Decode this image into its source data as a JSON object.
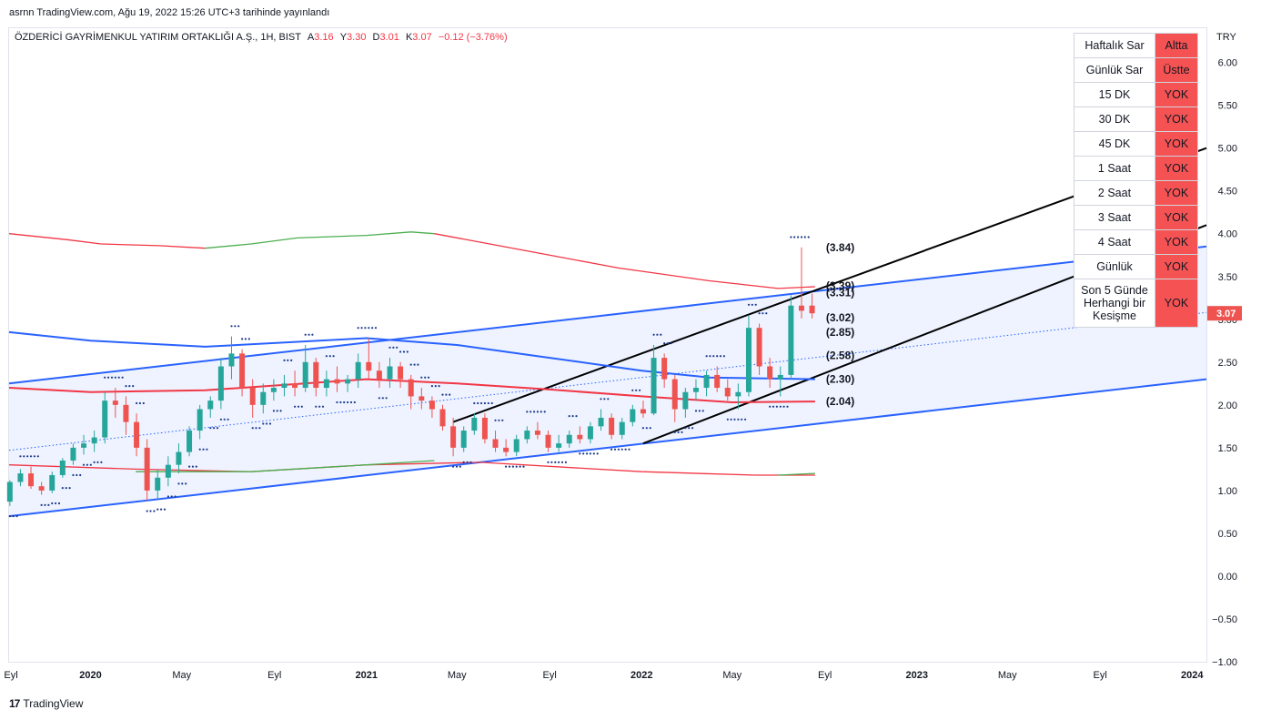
{
  "header": {
    "published_note": "asrnn TradingView.com, Ağu 19, 2022 15:26 UTC+3 tarihinde yayınlandı"
  },
  "legend": {
    "symbol": "ÖZDERİCİ GAYRİMENKUL YATIRIM ORTAKLIĞI A.Ş., 1H, BIST",
    "open_label": "A",
    "open": "3.16",
    "high_label": "Y",
    "high": "3.30",
    "low_label": "D",
    "low": "3.01",
    "close_label": "K",
    "close": "3.07",
    "change": "−0.12 (−3.76%)"
  },
  "signal_table": [
    {
      "name": "Haftalık Sar",
      "state": "Altta"
    },
    {
      "name": "Günlük Sar",
      "state": "Üstte"
    },
    {
      "name": "15 DK",
      "state": "YOK"
    },
    {
      "name": "30 DK",
      "state": "YOK"
    },
    {
      "name": "45 DK",
      "state": "YOK"
    },
    {
      "name": "1 Saat",
      "state": "YOK"
    },
    {
      "name": "2 Saat",
      "state": "YOK"
    },
    {
      "name": "3 Saat",
      "state": "YOK"
    },
    {
      "name": "4 Saat",
      "state": "YOK"
    },
    {
      "name": "Günlük",
      "state": "YOK"
    },
    {
      "name": "Son 5 Günde Herhangi bir Kesişme",
      "state": "YOK"
    }
  ],
  "footer": {
    "brand": "TradingView",
    "brand_mark": "17"
  },
  "colors": {
    "up": "#26a69a",
    "down": "#ef5350",
    "channel": "#2962ff",
    "ma_red": "#f23645",
    "ma_green": "#4caf50",
    "sar": "#1e3a8a",
    "table_red": "#f55353"
  },
  "chart_data": {
    "type": "candlestick",
    "currency": "TRY",
    "last_price": "3.07",
    "y_ticks": [
      "6.00",
      "5.50",
      "5.00",
      "4.50",
      "4.00",
      "3.50",
      "3.00",
      "2.50",
      "2.00",
      "1.50",
      "1.00",
      "0.50",
      "0.00",
      "−0.50",
      "−1.00"
    ],
    "y_range": [
      -1.0,
      6.4
    ],
    "x_range": [
      "2019-09-15",
      "2024-01-20"
    ],
    "x_ticks": [
      {
        "label": "Eyl",
        "date": "2019-09-01"
      },
      {
        "label": "2020",
        "date": "2020-01-01"
      },
      {
        "label": "May",
        "date": "2020-05-01"
      },
      {
        "label": "Eyl",
        "date": "2020-09-01"
      },
      {
        "label": "2021",
        "date": "2021-01-01"
      },
      {
        "label": "May",
        "date": "2021-05-01"
      },
      {
        "label": "Eyl",
        "date": "2021-09-01"
      },
      {
        "label": "2022",
        "date": "2022-01-01"
      },
      {
        "label": "May",
        "date": "2022-05-01"
      },
      {
        "label": "Eyl",
        "date": "2022-09-01"
      },
      {
        "label": "2023",
        "date": "2023-01-01"
      },
      {
        "label": "May",
        "date": "2023-05-01"
      },
      {
        "label": "Eyl",
        "date": "2023-09-01"
      },
      {
        "label": "2024",
        "date": "2024-01-01"
      }
    ],
    "candles_weekly": [
      [
        "2019-09-16",
        0.87,
        1.12,
        0.82,
        1.1
      ],
      [
        "2019-09-30",
        1.1,
        1.25,
        1.05,
        1.2
      ],
      [
        "2019-10-14",
        1.2,
        1.28,
        1.02,
        1.05
      ],
      [
        "2019-10-28",
        1.05,
        1.1,
        0.95,
        1.0
      ],
      [
        "2019-11-11",
        1.0,
        1.22,
        0.97,
        1.18
      ],
      [
        "2019-11-25",
        1.18,
        1.38,
        1.15,
        1.35
      ],
      [
        "2019-12-09",
        1.35,
        1.55,
        1.3,
        1.5
      ],
      [
        "2019-12-23",
        1.5,
        1.65,
        1.42,
        1.55
      ],
      [
        "2020-01-06",
        1.55,
        1.7,
        1.45,
        1.62
      ],
      [
        "2020-01-20",
        1.62,
        2.15,
        1.55,
        2.05
      ],
      [
        "2020-02-03",
        2.05,
        2.2,
        1.85,
        2.0
      ],
      [
        "2020-02-17",
        2.0,
        2.1,
        1.65,
        1.8
      ],
      [
        "2020-03-02",
        1.8,
        1.9,
        1.4,
        1.5
      ],
      [
        "2020-03-16",
        1.5,
        1.6,
        0.88,
        1.0
      ],
      [
        "2020-03-30",
        1.0,
        1.25,
        0.9,
        1.15
      ],
      [
        "2020-04-13",
        1.15,
        1.4,
        1.05,
        1.3
      ],
      [
        "2020-04-27",
        1.3,
        1.55,
        1.2,
        1.45
      ],
      [
        "2020-05-11",
        1.45,
        1.75,
        1.4,
        1.7
      ],
      [
        "2020-05-25",
        1.7,
        2.0,
        1.6,
        1.95
      ],
      [
        "2020-06-08",
        1.95,
        2.1,
        1.85,
        2.05
      ],
      [
        "2020-06-22",
        2.05,
        2.55,
        1.95,
        2.45
      ],
      [
        "2020-07-06",
        2.45,
        2.8,
        2.3,
        2.6
      ],
      [
        "2020-07-20",
        2.6,
        2.65,
        2.1,
        2.2
      ],
      [
        "2020-08-03",
        2.2,
        2.3,
        1.85,
        2.0
      ],
      [
        "2020-08-17",
        2.0,
        2.25,
        1.9,
        2.15
      ],
      [
        "2020-08-31",
        2.15,
        2.3,
        2.05,
        2.2
      ],
      [
        "2020-09-14",
        2.2,
        2.35,
        2.1,
        2.25
      ],
      [
        "2020-09-28",
        2.25,
        2.4,
        2.1,
        2.2
      ],
      [
        "2020-10-12",
        2.2,
        2.7,
        2.15,
        2.5
      ],
      [
        "2020-10-26",
        2.5,
        2.55,
        2.1,
        2.2
      ],
      [
        "2020-11-09",
        2.2,
        2.4,
        2.1,
        2.3
      ],
      [
        "2020-11-23",
        2.3,
        2.45,
        2.15,
        2.25
      ],
      [
        "2020-12-07",
        2.25,
        2.35,
        2.15,
        2.3
      ],
      [
        "2020-12-21",
        2.3,
        2.6,
        2.2,
        2.5
      ],
      [
        "2021-01-04",
        2.5,
        2.78,
        2.3,
        2.4
      ],
      [
        "2021-01-18",
        2.4,
        2.5,
        2.2,
        2.3
      ],
      [
        "2021-02-01",
        2.3,
        2.55,
        2.2,
        2.45
      ],
      [
        "2021-02-15",
        2.45,
        2.5,
        2.2,
        2.3
      ],
      [
        "2021-03-01",
        2.3,
        2.35,
        1.95,
        2.1
      ],
      [
        "2021-03-15",
        2.1,
        2.2,
        1.95,
        2.05
      ],
      [
        "2021-03-29",
        2.05,
        2.1,
        1.85,
        1.95
      ],
      [
        "2021-04-12",
        1.95,
        2.0,
        1.7,
        1.75
      ],
      [
        "2021-04-26",
        1.75,
        1.85,
        1.4,
        1.5
      ],
      [
        "2021-05-10",
        1.5,
        1.75,
        1.45,
        1.7
      ],
      [
        "2021-05-24",
        1.7,
        1.9,
        1.65,
        1.85
      ],
      [
        "2021-06-07",
        1.85,
        1.9,
        1.55,
        1.6
      ],
      [
        "2021-06-21",
        1.6,
        1.7,
        1.45,
        1.5
      ],
      [
        "2021-07-05",
        1.5,
        1.6,
        1.4,
        1.45
      ],
      [
        "2021-07-19",
        1.45,
        1.65,
        1.4,
        1.6
      ],
      [
        "2021-08-02",
        1.6,
        1.75,
        1.55,
        1.7
      ],
      [
        "2021-08-16",
        1.7,
        1.8,
        1.6,
        1.65
      ],
      [
        "2021-08-30",
        1.65,
        1.7,
        1.45,
        1.5
      ],
      [
        "2021-09-13",
        1.5,
        1.65,
        1.45,
        1.55
      ],
      [
        "2021-09-27",
        1.55,
        1.7,
        1.5,
        1.65
      ],
      [
        "2021-10-11",
        1.65,
        1.75,
        1.55,
        1.6
      ],
      [
        "2021-10-25",
        1.6,
        1.8,
        1.55,
        1.75
      ],
      [
        "2021-11-08",
        1.75,
        1.95,
        1.7,
        1.85
      ],
      [
        "2021-11-22",
        1.85,
        1.9,
        1.6,
        1.65
      ],
      [
        "2021-12-06",
        1.65,
        1.85,
        1.6,
        1.8
      ],
      [
        "2021-12-20",
        1.8,
        2.0,
        1.75,
        1.95
      ],
      [
        "2022-01-03",
        1.95,
        2.05,
        1.85,
        1.9
      ],
      [
        "2022-01-17",
        1.9,
        2.7,
        1.88,
        2.55
      ],
      [
        "2022-01-31",
        2.55,
        2.6,
        2.2,
        2.3
      ],
      [
        "2022-02-14",
        2.3,
        2.35,
        1.8,
        1.95
      ],
      [
        "2022-02-28",
        1.95,
        2.2,
        1.85,
        2.15
      ],
      [
        "2022-03-14",
        2.15,
        2.3,
        2.05,
        2.2
      ],
      [
        "2022-03-28",
        2.2,
        2.4,
        2.1,
        2.35
      ],
      [
        "2022-04-11",
        2.35,
        2.45,
        2.15,
        2.2
      ],
      [
        "2022-04-25",
        2.2,
        2.3,
        2.05,
        2.1
      ],
      [
        "2022-05-09",
        2.1,
        2.25,
        1.95,
        2.15
      ],
      [
        "2022-05-23",
        2.15,
        3.05,
        2.1,
        2.9
      ],
      [
        "2022-06-06",
        2.9,
        2.95,
        2.35,
        2.45
      ],
      [
        "2022-06-20",
        2.45,
        2.55,
        2.2,
        2.3
      ],
      [
        "2022-07-04",
        2.3,
        2.45,
        2.1,
        2.35
      ],
      [
        "2022-07-18",
        2.35,
        3.28,
        2.3,
        3.16
      ],
      [
        "2022-08-01",
        3.16,
        3.84,
        3.01,
        3.1
      ],
      [
        "2022-08-15",
        3.16,
        3.3,
        3.01,
        3.07
      ]
    ],
    "overlays": [
      {
        "name": "upper-channel",
        "color": "#2962ff",
        "points": [
          [
            "2019-09-15",
            2.25
          ],
          [
            "2024-01-20",
            3.85
          ]
        ]
      },
      {
        "name": "lower-channel",
        "color": "#2962ff",
        "points": [
          [
            "2019-09-15",
            0.7
          ],
          [
            "2024-01-20",
            2.3
          ]
        ]
      },
      {
        "name": "mid-dotted",
        "color": "#2962ff",
        "dotted": true,
        "points": [
          [
            "2019-09-15",
            1.47
          ],
          [
            "2024-01-20",
            3.08
          ]
        ]
      },
      {
        "name": "rising-channel-top",
        "color": "#000000",
        "points": [
          [
            "2021-04-26",
            1.8
          ],
          [
            "2024-01-20",
            5.0
          ]
        ]
      },
      {
        "name": "rising-channel-bottom",
        "color": "#000000",
        "points": [
          [
            "2022-01-03",
            1.55
          ],
          [
            "2024-01-20",
            4.1
          ]
        ]
      },
      {
        "name": "ma-long-red-top",
        "color": "#f23645",
        "points": [
          [
            "2019-09-15",
            4.0
          ],
          [
            "2019-12-01",
            3.93
          ],
          [
            "2020-01-15",
            3.88
          ],
          [
            "2020-04-01",
            3.86
          ],
          [
            "2020-06-01",
            3.83
          ]
        ]
      },
      {
        "name": "ma-long-green-top",
        "color": "#4caf50",
        "points": [
          [
            "2020-06-01",
            3.83
          ],
          [
            "2020-08-01",
            3.88
          ],
          [
            "2020-10-01",
            3.95
          ],
          [
            "2021-01-01",
            3.98
          ],
          [
            "2021-03-01",
            4.02
          ],
          [
            "2021-04-01",
            4.0
          ]
        ]
      },
      {
        "name": "ma-long-red-top-2",
        "color": "#f23645",
        "points": [
          [
            "2021-04-01",
            4.0
          ],
          [
            "2021-08-01",
            3.8
          ],
          [
            "2021-12-01",
            3.6
          ],
          [
            "2022-04-01",
            3.45
          ],
          [
            "2022-07-01",
            3.36
          ],
          [
            "2022-08-19",
            3.38
          ]
        ]
      },
      {
        "name": "ma-long-red-bottom",
        "color": "#f23645",
        "points": [
          [
            "2019-09-15",
            1.3
          ],
          [
            "2020-03-01",
            1.25
          ],
          [
            "2020-08-01",
            1.22
          ],
          [
            "2021-01-01",
            1.3
          ],
          [
            "2021-06-01",
            1.33
          ]
        ]
      },
      {
        "name": "ma-long-red-bottom-2",
        "color": "#f23645",
        "points": [
          [
            "2021-06-01",
            1.33
          ],
          [
            "2022-01-01",
            1.22
          ],
          [
            "2022-06-01",
            1.18
          ],
          [
            "2022-08-19",
            1.18
          ]
        ]
      },
      {
        "name": "ma-long-green-bottom",
        "color": "#4caf50",
        "points": [
          [
            "2020-03-01",
            1.22
          ],
          [
            "2020-08-01",
            1.22
          ],
          [
            "2021-01-01",
            1.3
          ],
          [
            "2021-04-01",
            1.35
          ]
        ]
      },
      {
        "name": "ma-long-green-bottom-2",
        "color": "#4caf50",
        "points": [
          [
            "2022-07-01",
            1.18
          ],
          [
            "2022-08-19",
            1.2
          ]
        ]
      },
      {
        "name": "ma-mid-blue",
        "color": "#2962ff",
        "points": [
          [
            "2019-09-15",
            2.85
          ],
          [
            "2020-01-01",
            2.75
          ],
          [
            "2020-06-01",
            2.68
          ],
          [
            "2021-01-01",
            2.78
          ],
          [
            "2021-05-01",
            2.7
          ],
          [
            "2021-09-01",
            2.55
          ],
          [
            "2022-01-01",
            2.4
          ],
          [
            "2022-04-01",
            2.32
          ],
          [
            "2022-08-19",
            2.3
          ]
        ]
      },
      {
        "name": "ma-mid-red",
        "color": "#f23645",
        "points": [
          [
            "2019-09-15",
            2.2
          ],
          [
            "2020-01-01",
            2.15
          ],
          [
            "2020-06-01",
            2.17
          ],
          [
            "2021-01-01",
            2.3
          ],
          [
            "2021-05-01",
            2.25
          ],
          [
            "2021-09-01",
            2.18
          ],
          [
            "2022-01-01",
            2.1
          ],
          [
            "2022-05-01",
            2.03
          ],
          [
            "2022-08-19",
            2.04
          ]
        ]
      }
    ],
    "level_labels": [
      {
        "value": 3.84,
        "label": "(3.84)"
      },
      {
        "value": 3.39,
        "label": "(3.39)"
      },
      {
        "value": 3.31,
        "label": "(3.31)"
      },
      {
        "value": 3.02,
        "label": "(3.02)"
      },
      {
        "value": 2.85,
        "label": "(2.85)"
      },
      {
        "value": 2.58,
        "label": "(2.58)"
      },
      {
        "value": 2.3,
        "label": "(2.30)"
      },
      {
        "value": 2.04,
        "label": "(2.04)"
      }
    ]
  }
}
